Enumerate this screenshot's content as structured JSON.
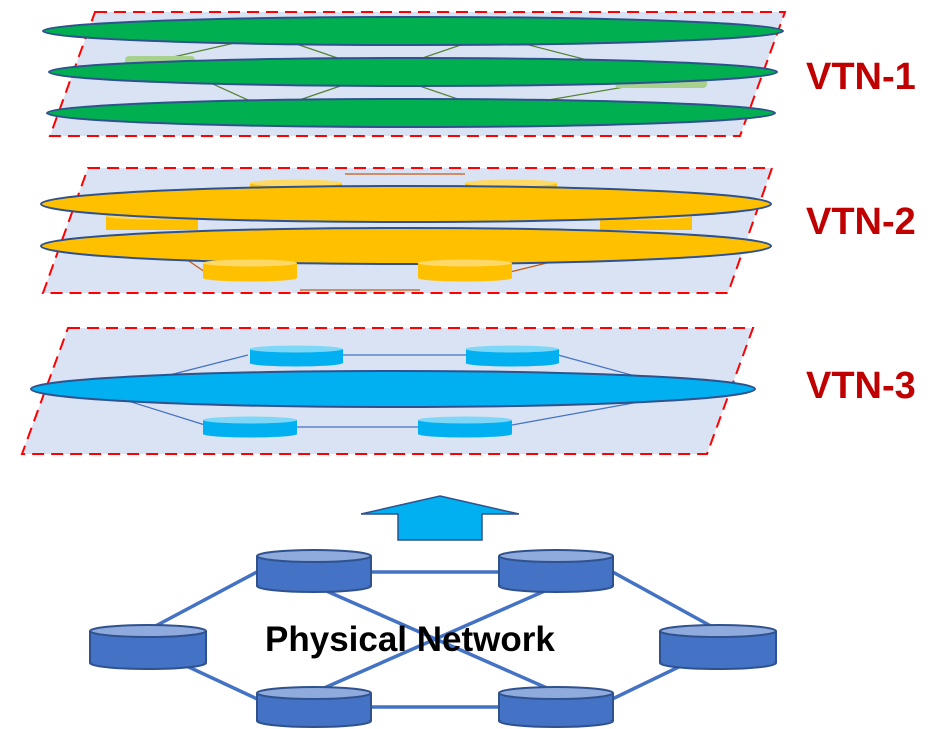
{
  "layers": [
    {
      "id": "vtn-1",
      "label": "VTN-1",
      "slice_color": "#00b050",
      "slice_count": 3
    },
    {
      "id": "vtn-2",
      "label": "VTN-2",
      "slice_color": "#ffc000",
      "slice_count": 2
    },
    {
      "id": "vtn-3",
      "label": "VTN-3",
      "slice_color": "#00b0f0",
      "slice_count": 1
    }
  ],
  "physical_network": {
    "label": "Physical Network",
    "node_color": "#4472c4",
    "node_count": 6
  },
  "colors": {
    "plane_fill": "#dae3f3",
    "plane_border": "#ff0000",
    "label_color": "#c00000",
    "arrow_fill": "#00b0f0",
    "link_color": "#4472c4",
    "ellipse_outline": "#2f528f"
  }
}
